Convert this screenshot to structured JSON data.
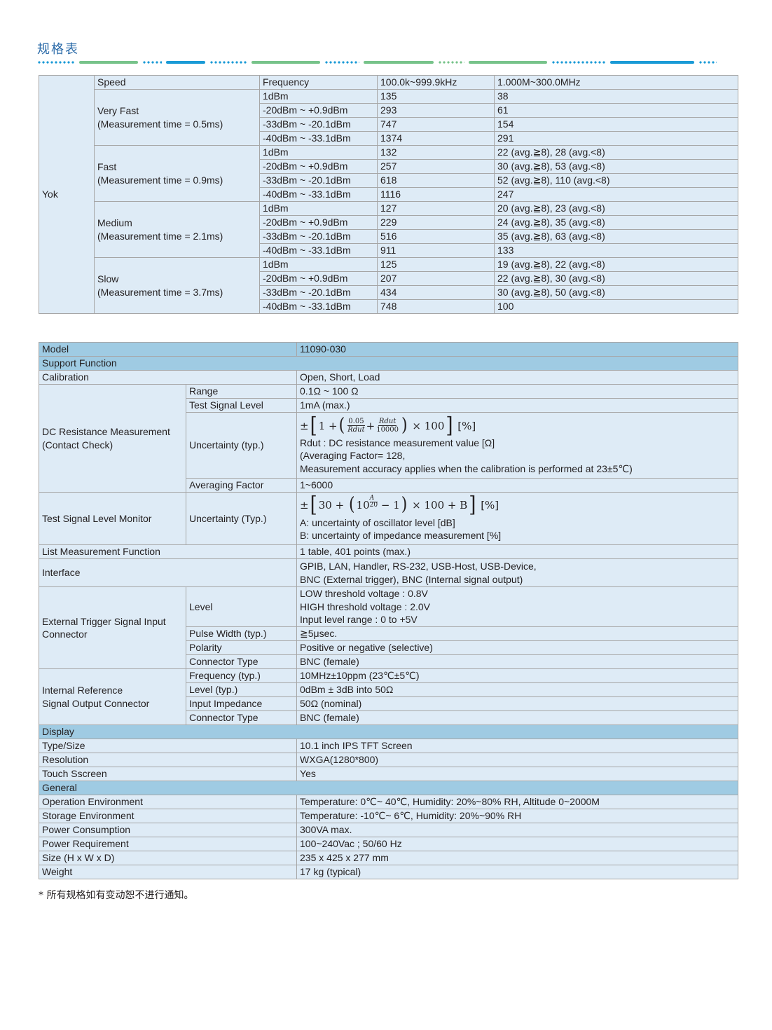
{
  "page_title": "规格表",
  "colors": {
    "title": "#2a6aa8",
    "header_row": "#9fcbe3",
    "cell_bg": "#deebf6",
    "dot_blue": "#1a9ad6",
    "bar_green": "#77c38a"
  },
  "speed_table": {
    "group_label": "Yok",
    "header": {
      "speed": "Speed",
      "frequency": "Frequency",
      "band1": "100.0k~999.9kHz",
      "band2": "1.000M~300.0MHz"
    },
    "groups": [
      {
        "name": "Very Fast",
        "note": "(Measurement time = 0.5ms)",
        "rows": [
          [
            "1dBm",
            "135",
            "38"
          ],
          [
            "-20dBm ~ +0.9dBm",
            "293",
            "61"
          ],
          [
            "-33dBm ~ -20.1dBm",
            "747",
            "154"
          ],
          [
            "-40dBm ~ -33.1dBm",
            "1374",
            "291"
          ]
        ]
      },
      {
        "name": "Fast",
        "note": "(Measurement time = 0.9ms)",
        "rows": [
          [
            "1dBm",
            "132",
            "22 (avg.≧8),  28 (avg.<8)"
          ],
          [
            "-20dBm ~ +0.9dBm",
            "257",
            "30 (avg.≧8),  53 (avg.<8)"
          ],
          [
            "-33dBm ~ -20.1dBm",
            "618",
            "52 (avg.≧8), 110 (avg.<8)"
          ],
          [
            "-40dBm ~ -33.1dBm",
            "1116",
            "247"
          ]
        ]
      },
      {
        "name": "Medium",
        "note": "(Measurement time = 2.1ms)",
        "rows": [
          [
            "1dBm",
            "127",
            "20 (avg.≧8), 23 (avg.<8)"
          ],
          [
            "-20dBm ~ +0.9dBm",
            "229",
            "24 (avg.≧8), 35 (avg.<8)"
          ],
          [
            "-33dBm ~ -20.1dBm",
            "516",
            "35 (avg.≧8), 63 (avg.<8)"
          ],
          [
            "-40dBm ~ -33.1dBm",
            "911",
            "133"
          ]
        ]
      },
      {
        "name": "Slow",
        "note": "(Measurement time = 3.7ms)",
        "rows": [
          [
            "1dBm",
            "125",
            "19 (avg.≧8), 22 (avg.<8)"
          ],
          [
            "-20dBm ~ +0.9dBm",
            "207",
            "22 (avg.≧8), 30 (avg.<8)"
          ],
          [
            "-33dBm ~ -20.1dBm",
            "434",
            "30 (avg.≧8), 50 (avg.<8)"
          ],
          [
            "-40dBm ~ -33.1dBm",
            "748",
            "100"
          ]
        ]
      }
    ]
  },
  "spec": {
    "model": {
      "label": "Model",
      "value": "11090-030"
    },
    "support_function": "Support Function",
    "calibration": {
      "label": "Calibration",
      "value": "Open, Short, Load"
    },
    "dcr": {
      "label1": "DC Resistance Measurement",
      "label2": "(Contact Check)",
      "range": {
        "label": "Range",
        "value": "0.1Ω ~ 100 Ω"
      },
      "test_signal": {
        "label": "Test Signal Level",
        "value": "1mA (max.)"
      },
      "uncertainty": {
        "label": "Uncertainty (typ.)",
        "formula": {
          "pm": "±",
          "one_plus": "1 +",
          "num1": "0.05",
          "den1": "Rdut",
          "plus": "+",
          "num2": "Rdut",
          "den2": "10000",
          "times": "× 100",
          "unit": "[%]"
        },
        "line1": "Rdut : DC resistance measurement value [Ω]",
        "line2": "(Averaging Factor= 128,",
        "line3": "Measurement accuracy applies when the calibration is performed at 23±5℃)"
      },
      "averaging": {
        "label": "Averaging Factor",
        "value": "1~6000"
      }
    },
    "tslm": {
      "label": "Test Signal Level Monitor",
      "uncertainty_label": "Uncertainty (Typ.)",
      "formula": {
        "pm": "±",
        "start": "30 +",
        "base": "10",
        "exp_num": "A",
        "exp_den": "20",
        "rest": "− 1",
        "tail": "× 100 + B",
        "unit": "[%]"
      },
      "line_a": "A: uncertainty of oscillator level [dB]",
      "line_b": "B: uncertainty of impedance measurement [%]"
    },
    "list_meas": {
      "label": "List Measurement Function",
      "value": "1 table, 401 points (max.)"
    },
    "interface": {
      "label": "Interface",
      "line1": "GPIB, LAN, Handler, RS-232, USB-Host, USB-Device,",
      "line2": "BNC (External trigger), BNC (Internal signal output)"
    },
    "ext_trigger": {
      "label1": "External Trigger Signal Input",
      "label2": "Connector",
      "level": {
        "label": "Level",
        "line1": "LOW threshold voltage : 0.8V",
        "line2": "HIGH threshold voltage : 2.0V",
        "line3": "Input level range : 0 to  +5V"
      },
      "pulse": {
        "label": "Pulse Width (typ.)",
        "value": "≧5μsec."
      },
      "polarity": {
        "label": "Polarity",
        "value": "Positive or negative (selective)"
      },
      "connector": {
        "label": "Connector Type",
        "value": "BNC (female)"
      }
    },
    "int_ref": {
      "label1": "Internal Reference",
      "label2": "Signal Output Connector",
      "frequency": {
        "label": "Frequency (typ.)",
        "value": "10MHz±10ppm (23℃±5℃)"
      },
      "level": {
        "label": "Level (typ.)",
        "value": "0dBm ± 3dB into 50Ω"
      },
      "impedance": {
        "label": "Input Impedance",
        "value": "50Ω (nominal)"
      },
      "connector": {
        "label": "Connector Type",
        "value": "BNC (female)"
      }
    },
    "display": {
      "header": "Display",
      "rows": [
        {
          "label": "Type/Size",
          "value": "10.1 inch IPS TFT Screen"
        },
        {
          "label": "Resolution",
          "value": "WXGA(1280*800)"
        },
        {
          "label": "Touch Sscreen",
          "value": "Yes"
        }
      ]
    },
    "general": {
      "header": "General",
      "rows": [
        {
          "label": "Operation Environment",
          "value": "Temperature: 0℃~ 40℃, Humidity: 20%~80% RH, Altitude 0~2000M"
        },
        {
          "label": "Storage Environment",
          "value": "Temperature: -10℃~ 6℃, Humidity: 20%~90% RH"
        },
        {
          "label": "Power Consumption",
          "value": "300VA max."
        },
        {
          "label": "Power Requirement",
          "value": "100~240Vac ; 50/60 Hz"
        },
        {
          "label": "Size (H x W x D)",
          "value": "235 x 425 x 277 mm"
        },
        {
          "label": "Weight",
          "value": "17 kg (typical)"
        }
      ]
    }
  },
  "footnote": "* 所有规格如有变动恕不进行通知。"
}
